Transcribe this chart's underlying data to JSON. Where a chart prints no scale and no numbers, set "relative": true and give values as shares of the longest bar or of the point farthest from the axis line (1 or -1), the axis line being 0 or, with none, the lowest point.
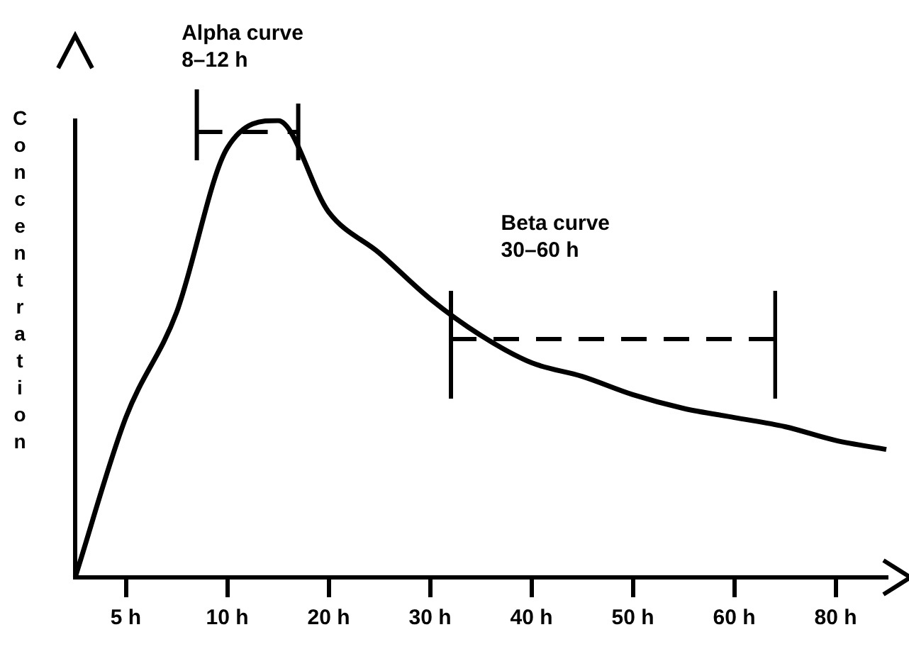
{
  "chart_data": {
    "type": "line",
    "relative": true,
    "ylabel": "Concentration",
    "categories": [
      null,
      "5 h",
      null,
      "10 h",
      null,
      "20 h",
      null,
      "30 h",
      null,
      "40 h",
      null,
      "50 h",
      null,
      "60 h",
      null,
      "80 h",
      null
    ],
    "values": [
      0,
      0.35,
      0.58,
      0.94,
      1,
      0.8,
      0.71,
      0.61,
      0.53,
      0.47,
      0.44,
      0.4,
      0.37,
      0.35,
      0.33,
      0.3,
      0.28
    ],
    "color": "#000000",
    "marker": "none",
    "grid": false,
    "legend": false,
    "annotations": [
      "Alpha curve",
      "8–12 h",
      "Beta curve",
      "30–60 h"
    ]
  }
}
